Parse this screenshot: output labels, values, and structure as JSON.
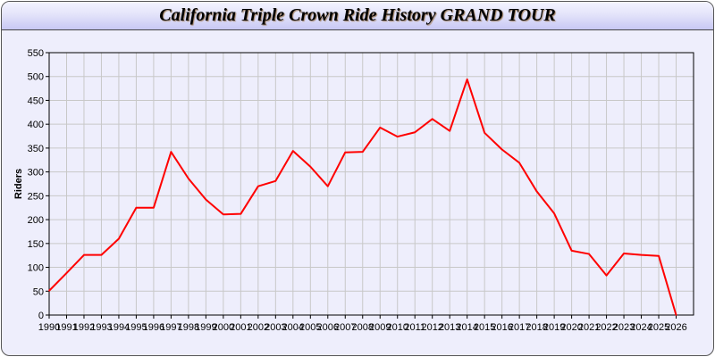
{
  "chart_data": {
    "type": "line",
    "title": "California Triple Crown Ride History GRAND TOUR",
    "xlabel": "",
    "ylabel": "Riders",
    "xlim": [
      1990,
      2027
    ],
    "ylim": [
      0,
      550
    ],
    "yticks": [
      0,
      50,
      100,
      150,
      200,
      250,
      300,
      350,
      400,
      450,
      500,
      550
    ],
    "grid": true,
    "line_color": "#ff0000",
    "x": [
      1990,
      1991,
      1992,
      1993,
      1994,
      1995,
      1996,
      1997,
      1998,
      1999,
      2000,
      2001,
      2002,
      2003,
      2004,
      2005,
      2006,
      2007,
      2008,
      2009,
      2010,
      2011,
      2012,
      2013,
      2014,
      2015,
      2016,
      2017,
      2018,
      2019,
      2020,
      2021,
      2022,
      2023,
      2024,
      2025,
      2026
    ],
    "series": [
      {
        "values": [
          51,
          88,
          126,
          126,
          160,
          225,
          225,
          342,
          286,
          242,
          211,
          212,
          270,
          281,
          344,
          311,
          270,
          341,
          342,
          393,
          374,
          383,
          411,
          386,
          494,
          382,
          347,
          319,
          259,
          213,
          135,
          128,
          83,
          129,
          126,
          124,
          0
        ]
      }
    ]
  }
}
